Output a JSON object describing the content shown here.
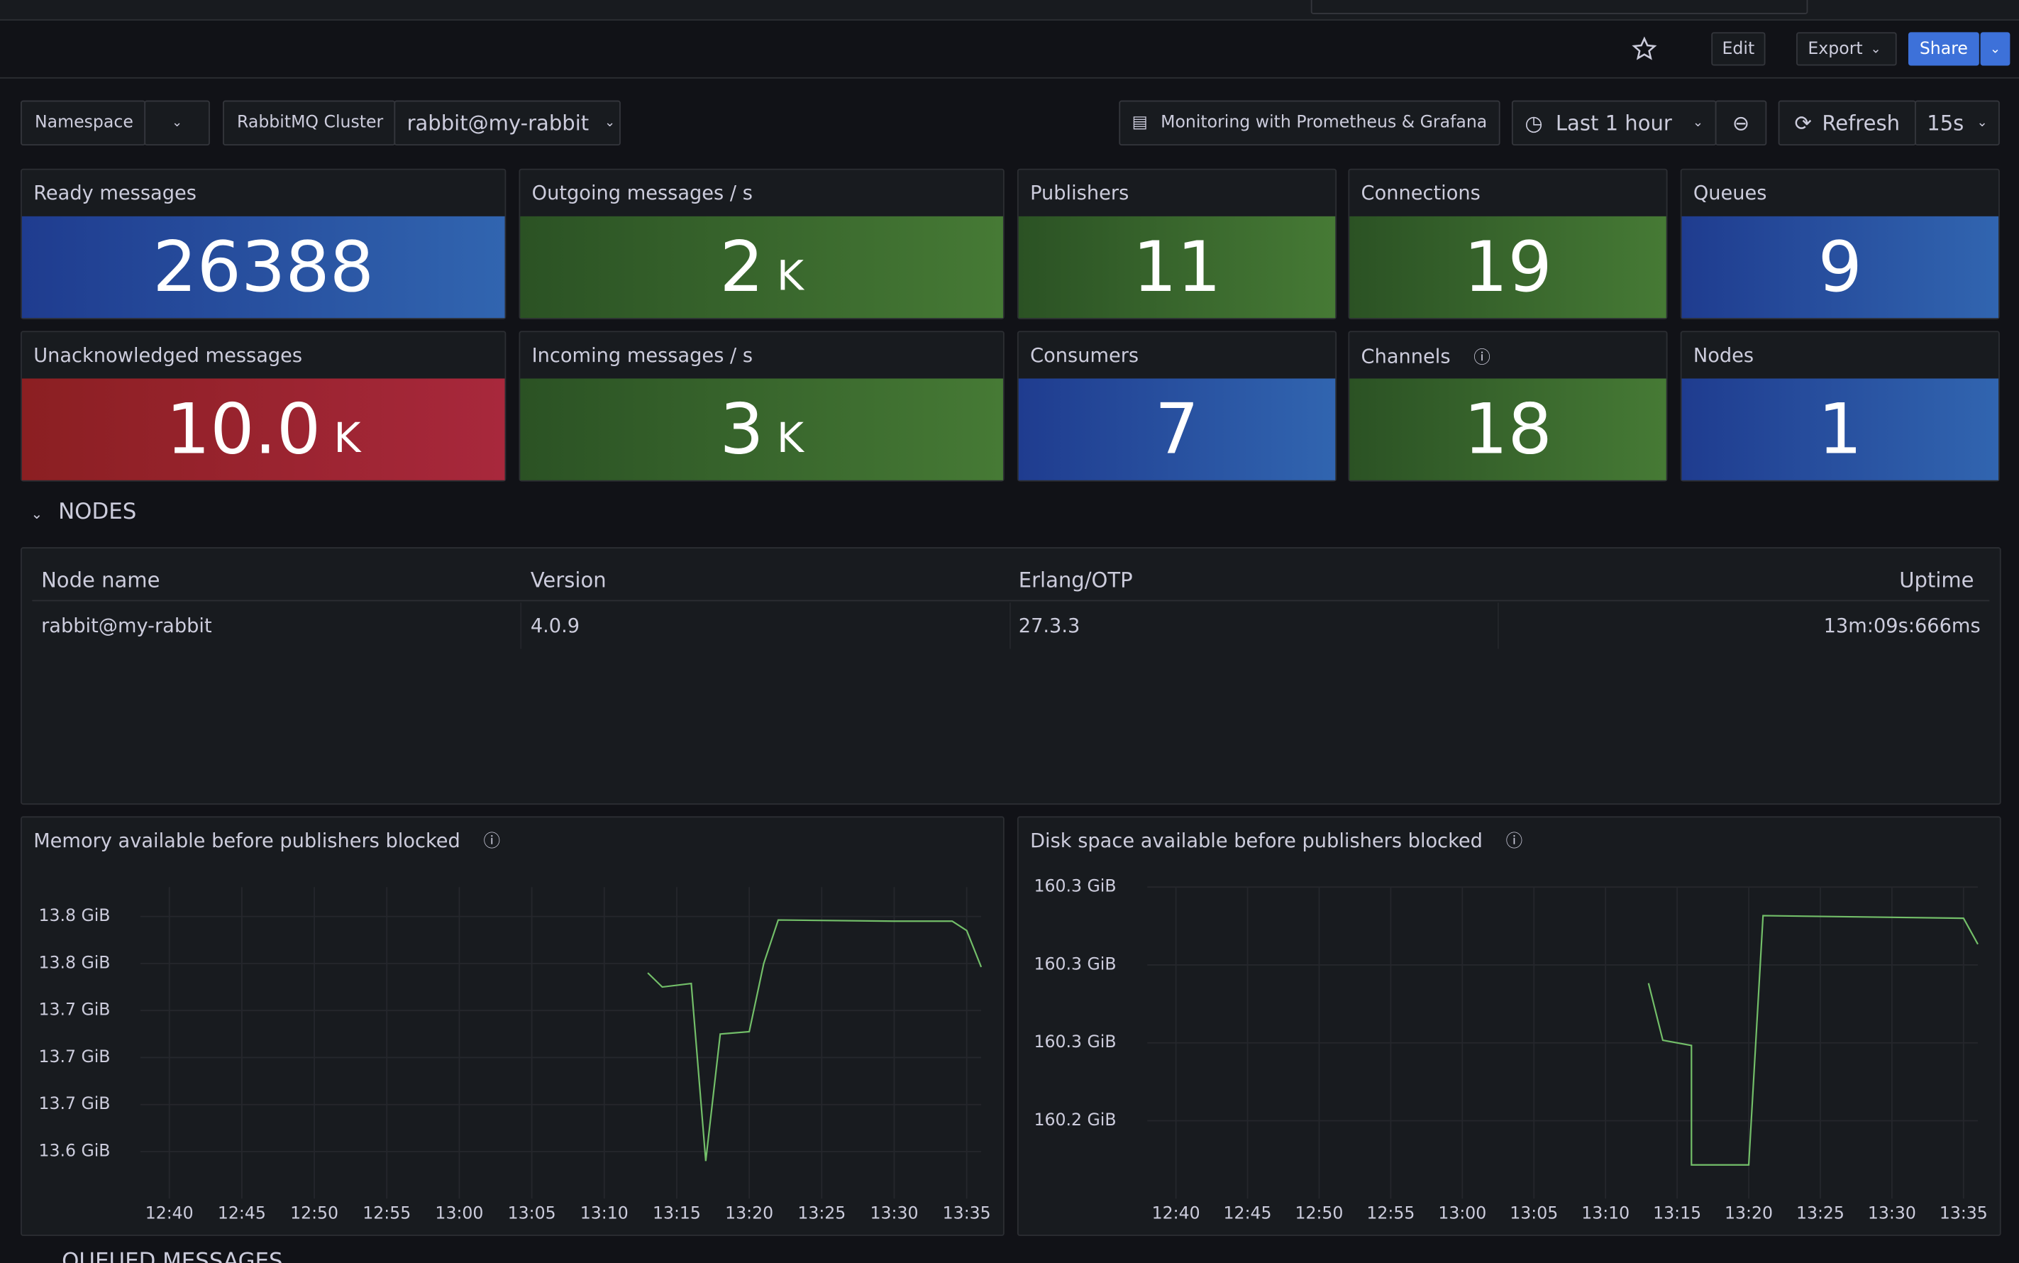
{
  "toolbar": {
    "edit": "Edit",
    "export": "Export",
    "share": "Share"
  },
  "variables": [
    {
      "label": "Namespace"
    },
    {
      "label": "RabbitMQ Cluster",
      "value": "rabbit@my-rabbit"
    }
  ],
  "link": "Monitoring with Prometheus & Grafana",
  "time_range": "Last 1 hour",
  "refresh": "Refresh",
  "refresh_interval": "15s",
  "stats": [
    {
      "title": "Ready messages",
      "value": "26388",
      "color": "blue"
    },
    {
      "title": "Outgoing messages / s",
      "value": "2",
      "unit": "K",
      "color": "green"
    },
    {
      "title": "Publishers",
      "value": "11",
      "color": "green"
    },
    {
      "title": "Connections",
      "value": "19",
      "color": "green"
    },
    {
      "title": "Queues",
      "value": "9",
      "color": "blue"
    },
    {
      "title": "Unacknowledged messages",
      "value": "10.0",
      "unit": "K",
      "color": "red"
    },
    {
      "title": "Incoming messages / s",
      "value": "3",
      "unit": "K",
      "color": "green"
    },
    {
      "title": "Consumers",
      "value": "7",
      "color": "blue"
    },
    {
      "title": "Channels",
      "value": "18",
      "color": "green",
      "info": true
    },
    {
      "title": "Nodes",
      "value": "1",
      "color": "blue"
    }
  ],
  "sections": [
    "NODES",
    "QUEUED MESSAGES"
  ],
  "table": {
    "columns": [
      "Node name",
      "Version",
      "Erlang/OTP",
      "Uptime"
    ],
    "rows": [
      [
        "rabbit@my-rabbit",
        "4.0.9",
        "27.3.3",
        "13m:09s:666ms"
      ]
    ]
  },
  "charts": [
    {
      "type": "line",
      "title": "Memory available before publishers blocked",
      "info": true,
      "xlim": [
        "12:38",
        "13:36"
      ],
      "xticks": [
        "12:40",
        "12:45",
        "12:50",
        "12:55",
        "13:00",
        "13:05",
        "13:10",
        "13:15",
        "13:20",
        "13:25",
        "13:30",
        "13:35"
      ],
      "ylim": [
        13.58,
        13.845
      ],
      "yticks": [
        {
          "value": 13.82,
          "label": "13.8 GiB"
        },
        {
          "value": 13.78,
          "label": "13.8 GiB"
        },
        {
          "value": 13.74,
          "label": "13.7 GiB"
        },
        {
          "value": 13.7,
          "label": "13.7 GiB"
        },
        {
          "value": 13.66,
          "label": "13.7 GiB"
        },
        {
          "value": 13.62,
          "label": "13.6 GiB"
        }
      ],
      "grid": true,
      "x": [
        "13:13",
        "13:14",
        "13:16",
        "13:17",
        "13:18",
        "13:20",
        "13:21",
        "13:22",
        "13:30",
        "13:34",
        "13:35",
        "13:36"
      ],
      "series": [
        {
          "color": "#73bf69",
          "values": [
            13.772,
            13.76,
            13.763,
            13.612,
            13.72,
            13.722,
            13.78,
            13.817,
            13.816,
            13.816,
            13.808,
            13.777
          ]
        }
      ]
    },
    {
      "type": "line",
      "title": "Disk space available before publishers blocked",
      "info": true,
      "xlim": [
        "12:38",
        "13:36"
      ],
      "xticks": [
        "12:40",
        "12:45",
        "12:50",
        "12:55",
        "13:00",
        "13:05",
        "13:10",
        "13:15",
        "13:20",
        "13:25",
        "13:30",
        "13:35"
      ],
      "ylim": [
        160.21,
        160.33
      ],
      "yticks": [
        {
          "value": 160.33,
          "label": "160.3 GiB"
        },
        {
          "value": 160.3,
          "label": "160.3 GiB"
        },
        {
          "value": 160.27,
          "label": "160.3 GiB"
        },
        {
          "value": 160.24,
          "label": "160.2 GiB"
        }
      ],
      "grid": true,
      "x": [
        "13:13",
        "13:14",
        "13:16",
        "13:16",
        "13:20",
        "13:21",
        "13:35",
        "13:36"
      ],
      "series": [
        {
          "color": "#73bf69",
          "values": [
            160.293,
            160.271,
            160.269,
            160.223,
            160.223,
            160.319,
            160.318,
            160.308
          ]
        }
      ]
    }
  ]
}
